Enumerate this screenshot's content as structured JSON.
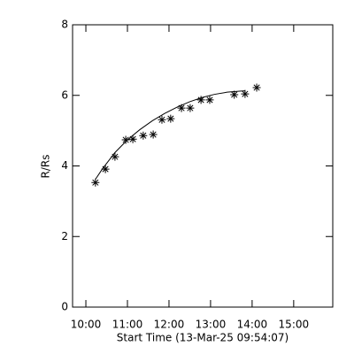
{
  "chart_data": {
    "type": "scatter",
    "x_label": "Start Time (13-Mar-25 09:54:07)",
    "y_label": "R/Rs",
    "xlim": [
      9.68,
      15.94
    ],
    "ylim": [
      0,
      8
    ],
    "xticks": [
      {
        "value": 10,
        "label": "10:00"
      },
      {
        "value": 11,
        "label": "11:00"
      },
      {
        "value": 12,
        "label": "12:00"
      },
      {
        "value": 13,
        "label": "13:00"
      },
      {
        "value": 14,
        "label": "14:00"
      },
      {
        "value": 15,
        "label": "15:00"
      }
    ],
    "yticks": [
      0,
      2,
      4,
      6,
      8
    ],
    "color": "#000000",
    "series": [
      {
        "x": [
          10.23,
          10.47,
          10.7,
          10.96,
          11.13,
          11.38,
          11.62,
          11.83,
          12.04,
          12.3,
          12.51,
          12.77,
          12.98,
          13.57,
          13.83,
          14.11
        ],
        "values": [
          3.53,
          3.91,
          4.26,
          4.74,
          4.76,
          4.86,
          4.89,
          5.31,
          5.34,
          5.64,
          5.64,
          5.87,
          5.87,
          6.02,
          6.04,
          6.22
        ]
      },
      {
        "x": [
          10.23,
          10.4,
          10.7,
          11.0,
          11.3,
          11.6,
          11.9,
          12.2,
          12.5,
          12.8,
          13.1,
          13.4,
          13.7,
          13.83
        ],
        "values": [
          3.62,
          3.92,
          4.38,
          4.74,
          5.03,
          5.28,
          5.49,
          5.67,
          5.82,
          5.94,
          6.03,
          6.09,
          6.12,
          6.13
        ],
        "style": "line"
      }
    ]
  }
}
